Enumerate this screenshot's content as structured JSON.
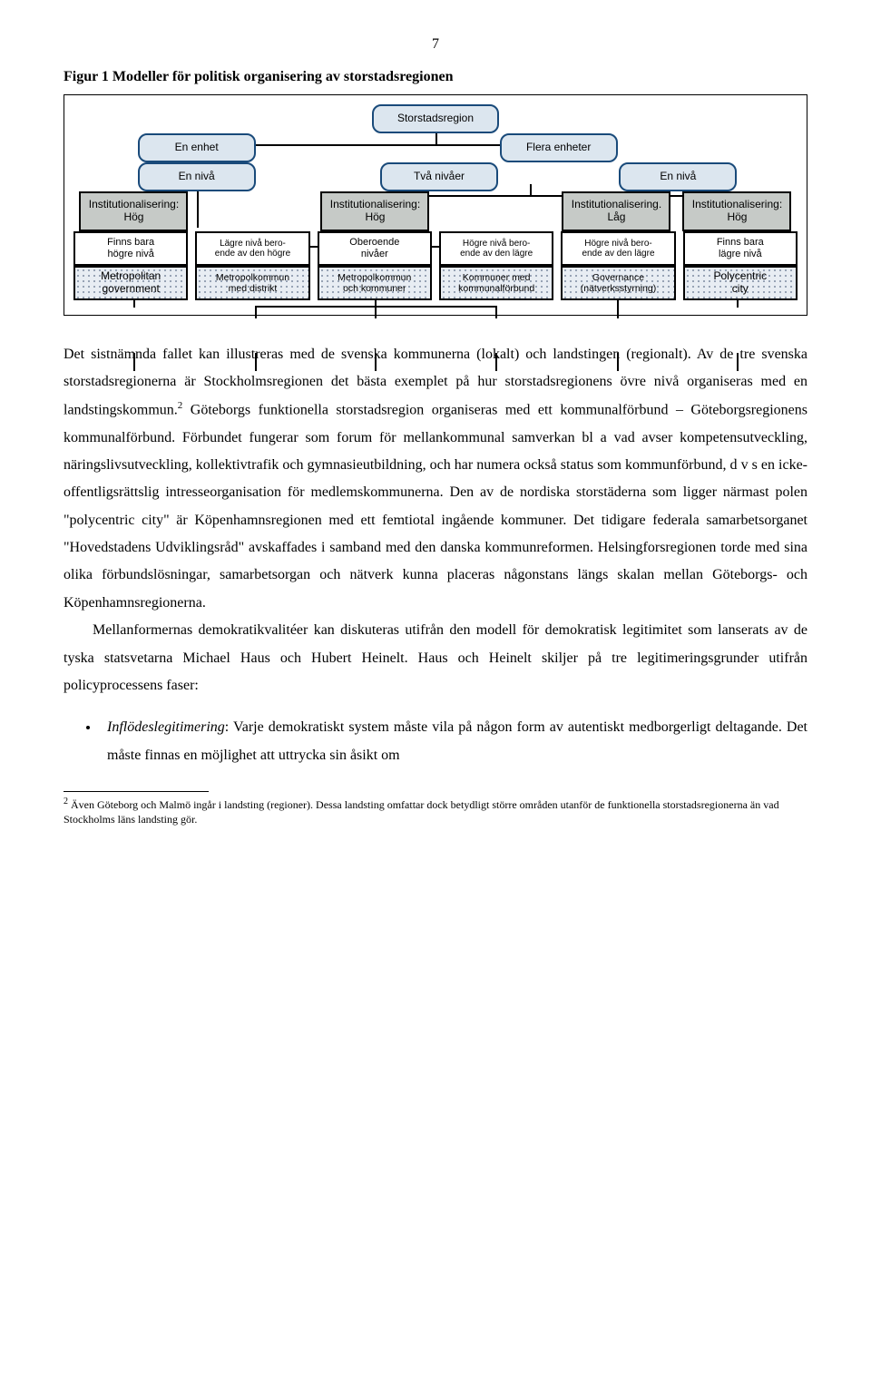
{
  "page_number": "7",
  "figure_title": "Figur 1 Modeller för politisk organisering av storstadsregionen",
  "diagram": {
    "root": "Storstadsregion",
    "level1": [
      "En enhet",
      "Flera enheter"
    ],
    "level2": [
      "En nivå",
      "Två nivåer",
      "En nivå"
    ],
    "level3": [
      "Institutionalisering:\nHög",
      "Institutionalisering:\nHög",
      "Institutionalisering.\nLåg",
      "Institutionalisering:\nHög"
    ],
    "level4": [
      "Finns bara\nhögre nivå",
      "Lägre nivå bero-\nende av den högre",
      "Oberoende\nnivåer",
      "Högre nivå bero-\nende av den lägre",
      "Högre nivå bero-\nende av den lägre",
      "Finns bara\nlägre nivå"
    ],
    "leaves": [
      "Metropolitan\ngovernment",
      "Metropolkommun\nmed distrikt",
      "Metropolkommun\noch kommuner",
      "Kommuner med\nkommunalförbund",
      "Governance\n(nätverksstyrning)",
      "Polycentric\ncity"
    ],
    "colors": {
      "frame_border": "#000000",
      "topbox_fill": "#dce6ef",
      "topbox_border": "#194a7a",
      "grey_fill": "#c6cac7",
      "hatch_bg": "#e8edf3",
      "hatch_dot": "#7c8aa0"
    }
  },
  "paragraph1": "Det sistnämnda fallet kan illustreras med de svenska kommunerna (lokalt) och landstingen (regionalt). Av de tre svenska storstadsregionerna är Stockholmsregionen det bästa exemplet på hur storstadsregionens övre nivå organiseras med en landstingskommun.",
  "paragraph1_after_ref": " Göteborgs funktionella storstadsregion organiseras med ett kommunalförbund – Göteborgsregionens kommunalförbund. Förbundet fungerar som forum för mellankommunal samverkan bl a vad avser kompetensutveckling, näringslivsutveckling, kollektivtrafik och gymnasieutbildning, och har numera också status som kommunförbund, d v s en icke-offentligsrättslig intresseorganisation för medlemskommunerna. Den av de nordiska storstäderna som ligger närmast polen \"polycentric city\" är Köpenhamnsregionen med ett femtiotal ingående kommuner. Det tidigare federala samarbetsorganet \"Hovedstadens Udviklingsråd\" avskaffades i samband med den danska kommunreformen. Helsingforsregionen torde med sina olika förbundslösningar, samarbetsorgan och nätverk kunna placeras någonstans längs skalan mellan Göteborgs- och Köpenhamnsregionerna.",
  "paragraph2": "Mellanformernas demokratikvalitéer kan diskuteras utifrån den modell för demokratisk legitimitet som lanserats av de tyska statsvetarna Michael Haus och Hubert Heinelt. Haus och Heinelt skiljer på tre legitimeringsgrunder utifrån policyprocessens faser:",
  "bullet_emph": "Inflödeslegitimering",
  "bullet_text": ": Varje demokratiskt system måste vila på någon form av autentiskt medborgerligt deltagande. Det måste finnas en möjlighet att uttrycka sin åsikt om",
  "footnote_num": "2",
  "footnote_text": " Även Göteborg och Malmö ingår i landsting (regioner). Dessa landsting omfattar dock betydligt större områden utanför de funktionella storstadsregionerna än vad Stockholms läns landsting gör."
}
